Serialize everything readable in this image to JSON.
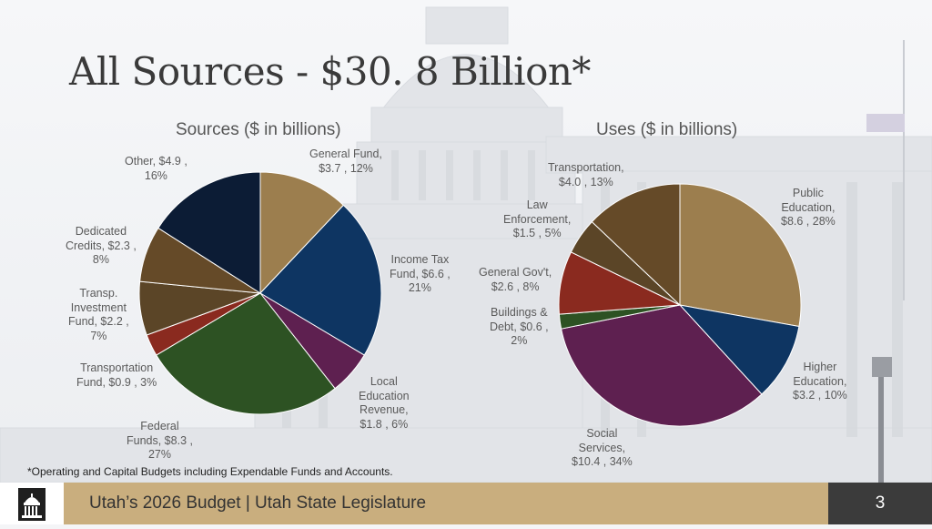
{
  "page_title": "All Sources - $30. 8 Billion*",
  "footnote": "*Operating and Capital Budgets including Expendable Funds and Accounts.",
  "footer": {
    "text": "Utah’s 2026 Budget | Utah State Legislature",
    "page_number": "3"
  },
  "chart_data": [
    {
      "type": "pie",
      "title": "Sources ($ in billions)",
      "slices": [
        {
          "label": "General Fund",
          "value": 3.7,
          "percent": 12,
          "color": "#9c7e4e",
          "text": [
            "General Fund,",
            "$3.7 , 12%"
          ]
        },
        {
          "label": "Income Tax Fund",
          "value": 6.6,
          "percent": 21,
          "color": "#0e3562",
          "text": [
            "Income Tax",
            "Fund, $6.6 ,",
            "21%"
          ]
        },
        {
          "label": "Local Education Revenue",
          "value": 1.8,
          "percent": 6,
          "color": "#5e2050",
          "text": [
            "Local",
            "Education",
            "Revenue,",
            "$1.8 , 6%"
          ]
        },
        {
          "label": "Federal Funds",
          "value": 8.3,
          "percent": 27,
          "color": "#2d5223",
          "text": [
            "Federal",
            "Funds, $8.3 ,",
            "27%"
          ]
        },
        {
          "label": "Transportation Fund",
          "value": 0.9,
          "percent": 3,
          "color": "#8a2a1f",
          "text": [
            "Transportation",
            "Fund, $0.9 , 3%"
          ]
        },
        {
          "label": "Transp. Investment Fund",
          "value": 2.2,
          "percent": 7,
          "color": "#5b4527",
          "text": [
            "Transp.",
            "Investment",
            "Fund, $2.2 ,",
            "7%"
          ]
        },
        {
          "label": "Dedicated Credits",
          "value": 2.3,
          "percent": 8,
          "color": "#654a28",
          "text": [
            "Dedicated",
            "Credits, $2.3 ,",
            "8%"
          ]
        },
        {
          "label": "Other",
          "value": 4.9,
          "percent": 16,
          "color": "#0c1c35",
          "text": [
            "Other, $4.9 ,",
            "16%"
          ]
        }
      ]
    },
    {
      "type": "pie",
      "title": "Uses ($ in billions)",
      "slices": [
        {
          "label": "Public Education",
          "value": 8.6,
          "percent": 28,
          "color": "#9c7e4e",
          "text": [
            "Public",
            "Education,",
            "$8.6 , 28%"
          ]
        },
        {
          "label": "Higher Education",
          "value": 3.2,
          "percent": 10,
          "color": "#0e3562",
          "text": [
            "Higher",
            "Education,",
            "$3.2 , 10%"
          ]
        },
        {
          "label": "Social Services",
          "value": 10.4,
          "percent": 34,
          "color": "#5e2050",
          "text": [
            "Social",
            "Services,",
            "$10.4 , 34%"
          ]
        },
        {
          "label": "Buildings & Debt",
          "value": 0.6,
          "percent": 2,
          "color": "#2d5223",
          "text": [
            "Buildings &",
            "Debt, $0.6 ,",
            "2%"
          ]
        },
        {
          "label": "General Gov't",
          "value": 2.6,
          "percent": 8,
          "color": "#8a2a1f",
          "text": [
            "General Gov't,",
            "$2.6 , 8%"
          ]
        },
        {
          "label": "Law Enforcement",
          "value": 1.5,
          "percent": 5,
          "color": "#5b4527",
          "text": [
            "Law",
            "Enforcement,",
            "$1.5 , 5%"
          ]
        },
        {
          "label": "Transportation",
          "value": 4.0,
          "percent": 13,
          "color": "#654a28",
          "text": [
            "Transportation,",
            "$4.0 , 13%"
          ]
        }
      ]
    }
  ]
}
